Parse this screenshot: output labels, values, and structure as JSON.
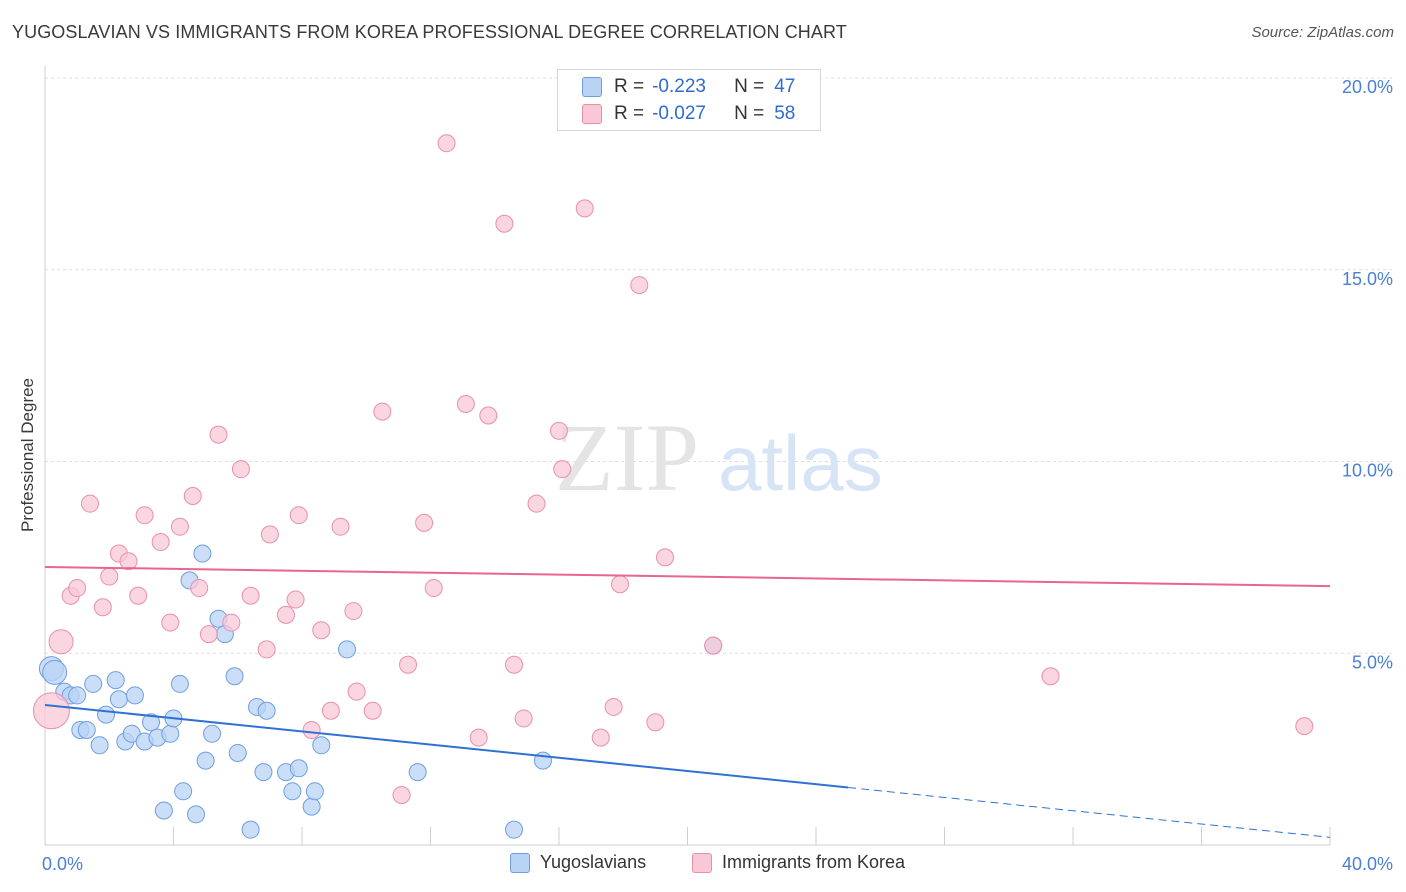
{
  "title": "YUGOSLAVIAN VS IMMIGRANTS FROM KOREA PROFESSIONAL DEGREE CORRELATION CHART",
  "source": "Source: ZipAtlas.com",
  "watermark": {
    "zip": "ZIP",
    "atlas": "atlas"
  },
  "stats": {
    "row1": {
      "r_label": "R =",
      "r_value": "-0.223",
      "n_label": "N =",
      "n_value": "47"
    },
    "row2": {
      "r_label": "R =",
      "r_value": "-0.027",
      "n_label": "N =",
      "n_value": "58"
    }
  },
  "legend": {
    "series1": "Yugoslavians",
    "series2": "Immigrants from Korea"
  },
  "colors": {
    "blue_fill": "#b9d3f5",
    "blue_stroke": "#6f9edf",
    "blue_line": "#2f72d4",
    "pink_fill": "#f8c8d6",
    "pink_stroke": "#e98fad",
    "pink_line": "#e8658f",
    "tick": "#4a7fd6",
    "grid": "#dddddd"
  },
  "chart_data": {
    "type": "scatter",
    "title": "YUGOSLAVIAN VS IMMIGRANTS FROM KOREA PROFESSIONAL DEGREE CORRELATION CHART",
    "xlabel": "",
    "ylabel": "Professional Degree",
    "xlim": [
      0,
      40
    ],
    "ylim": [
      0,
      20
    ],
    "x_tick_labels": [
      "0.0%",
      "40.0%"
    ],
    "y_ticks": [
      5,
      10,
      15,
      20
    ],
    "y_tick_labels": [
      "5.0%",
      "10.0%",
      "15.0%",
      "20.0%"
    ],
    "series": [
      {
        "name": "Yugoslavians",
        "R": -0.223,
        "N": 47,
        "trend": {
          "x0": 0,
          "y0": 3.65,
          "x1": 25,
          "y1": 1.5,
          "dashed_to_x": 40,
          "dashed_to_y": 0.2
        },
        "points": [
          [
            0.2,
            4.6,
            1
          ],
          [
            0.3,
            4.5,
            1
          ],
          [
            0.6,
            4.0,
            0
          ],
          [
            0.8,
            3.9,
            0
          ],
          [
            1.0,
            3.9,
            0
          ],
          [
            1.1,
            3.0,
            0
          ],
          [
            1.3,
            3.0,
            0
          ],
          [
            1.5,
            4.2,
            0
          ],
          [
            1.7,
            2.6,
            0
          ],
          [
            1.9,
            3.4,
            0
          ],
          [
            2.2,
            4.3,
            0
          ],
          [
            2.3,
            3.8,
            0
          ],
          [
            2.5,
            2.7,
            0
          ],
          [
            2.7,
            2.9,
            0
          ],
          [
            2.8,
            3.9,
            0
          ],
          [
            3.1,
            2.7,
            0
          ],
          [
            3.3,
            3.2,
            0
          ],
          [
            3.5,
            2.8,
            0
          ],
          [
            3.7,
            0.9,
            0
          ],
          [
            3.9,
            2.9,
            0
          ],
          [
            4.0,
            3.3,
            0
          ],
          [
            4.2,
            4.2,
            0
          ],
          [
            4.5,
            6.9,
            0
          ],
          [
            4.7,
            0.8,
            0
          ],
          [
            4.9,
            7.6,
            0
          ],
          [
            5.0,
            2.2,
            0
          ],
          [
            5.2,
            2.9,
            0
          ],
          [
            5.4,
            5.9,
            0
          ],
          [
            5.6,
            5.5,
            0
          ],
          [
            5.9,
            4.4,
            0
          ],
          [
            6.0,
            2.4,
            0
          ],
          [
            6.4,
            0.4,
            0
          ],
          [
            6.6,
            3.6,
            0
          ],
          [
            6.8,
            1.9,
            0
          ],
          [
            6.9,
            3.5,
            0
          ],
          [
            7.5,
            1.9,
            0
          ],
          [
            7.7,
            1.4,
            0
          ],
          [
            7.9,
            2.0,
            0
          ],
          [
            8.3,
            1.0,
            0
          ],
          [
            8.4,
            1.4,
            0
          ],
          [
            8.6,
            2.6,
            0
          ],
          [
            9.4,
            5.1,
            0
          ],
          [
            11.6,
            1.9,
            0
          ],
          [
            14.6,
            0.4,
            0
          ],
          [
            15.5,
            2.2,
            0
          ],
          [
            20.8,
            5.2,
            0
          ],
          [
            4.3,
            1.4,
            0
          ]
        ]
      },
      {
        "name": "Immigrants from Korea",
        "R": -0.027,
        "N": 58,
        "trend": {
          "x0": 0,
          "y0": 7.25,
          "x1": 40,
          "y1": 6.75
        },
        "points": [
          [
            0.2,
            3.5,
            2
          ],
          [
            0.5,
            5.3,
            1
          ],
          [
            0.8,
            6.5,
            0
          ],
          [
            1.0,
            6.7,
            0
          ],
          [
            1.4,
            8.9,
            0
          ],
          [
            1.8,
            6.2,
            0
          ],
          [
            2.0,
            7.0,
            0
          ],
          [
            2.3,
            7.6,
            0
          ],
          [
            2.6,
            7.4,
            0
          ],
          [
            2.9,
            6.5,
            0
          ],
          [
            3.1,
            8.6,
            0
          ],
          [
            3.6,
            7.9,
            0
          ],
          [
            3.9,
            5.8,
            0
          ],
          [
            4.2,
            8.3,
            0
          ],
          [
            4.6,
            9.1,
            0
          ],
          [
            4.8,
            6.7,
            0
          ],
          [
            5.1,
            5.5,
            0
          ],
          [
            5.4,
            10.7,
            0
          ],
          [
            5.8,
            5.8,
            0
          ],
          [
            6.1,
            9.8,
            0
          ],
          [
            6.4,
            6.5,
            0
          ],
          [
            6.9,
            5.1,
            0
          ],
          [
            7.0,
            8.1,
            0
          ],
          [
            7.5,
            6.0,
            0
          ],
          [
            7.8,
            6.4,
            0
          ],
          [
            7.9,
            8.6,
            0
          ],
          [
            8.3,
            3.0,
            0
          ],
          [
            8.6,
            5.6,
            0
          ],
          [
            8.9,
            3.5,
            0
          ],
          [
            9.2,
            8.3,
            0
          ],
          [
            9.6,
            6.1,
            0
          ],
          [
            9.7,
            4.0,
            0
          ],
          [
            10.2,
            3.5,
            0
          ],
          [
            10.5,
            11.3,
            0
          ],
          [
            11.1,
            1.3,
            0
          ],
          [
            11.3,
            4.7,
            0
          ],
          [
            11.8,
            8.4,
            0
          ],
          [
            12.1,
            6.7,
            0
          ],
          [
            12.5,
            18.3,
            0
          ],
          [
            13.1,
            11.5,
            0
          ],
          [
            13.5,
            2.8,
            0
          ],
          [
            13.8,
            11.2,
            0
          ],
          [
            14.3,
            16.2,
            0
          ],
          [
            14.6,
            4.7,
            0
          ],
          [
            14.9,
            3.3,
            0
          ],
          [
            15.3,
            8.9,
            0
          ],
          [
            16.0,
            10.8,
            0
          ],
          [
            16.1,
            9.8,
            0
          ],
          [
            16.8,
            16.6,
            0
          ],
          [
            17.3,
            2.8,
            0
          ],
          [
            17.7,
            3.6,
            0
          ],
          [
            17.9,
            6.8,
            0
          ],
          [
            18.5,
            14.6,
            0
          ],
          [
            19.0,
            3.2,
            0
          ],
          [
            19.3,
            7.5,
            0
          ],
          [
            20.8,
            5.2,
            0
          ],
          [
            31.3,
            4.4,
            0
          ],
          [
            39.2,
            3.1,
            0
          ]
        ]
      }
    ]
  }
}
